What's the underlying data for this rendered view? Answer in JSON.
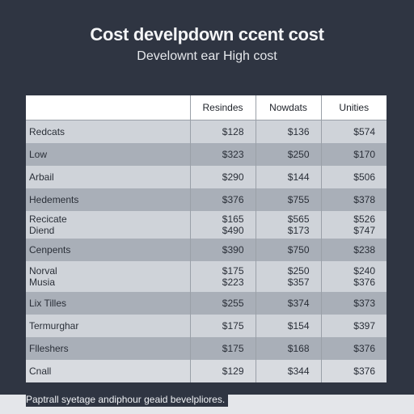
{
  "chart_data": {
    "type": "table",
    "title": "Cost develpdown ccent cost",
    "subtitle": "Develownt ear High cost",
    "columns": [
      "",
      "Resindes",
      "Nowdats",
      "Unities"
    ],
    "rows": [
      {
        "label": [
          "Redcats"
        ],
        "values": [
          [
            "$128"
          ],
          [
            "$136"
          ],
          [
            "$574"
          ]
        ]
      },
      {
        "label": [
          "Low"
        ],
        "values": [
          [
            "$323"
          ],
          [
            "$250"
          ],
          [
            "$170"
          ]
        ]
      },
      {
        "label": [
          "Arbail"
        ],
        "values": [
          [
            "$290"
          ],
          [
            "$144"
          ],
          [
            "$506"
          ]
        ]
      },
      {
        "label": [
          "Hedements"
        ],
        "values": [
          [
            "$376"
          ],
          [
            "$755"
          ],
          [
            "$378"
          ]
        ]
      },
      {
        "label": [
          "Recicate",
          "Diend"
        ],
        "values": [
          [
            "$165",
            "$490"
          ],
          [
            "$565",
            "$173"
          ],
          [
            "$526",
            "$747"
          ]
        ]
      },
      {
        "label": [
          "Cenpents"
        ],
        "values": [
          [
            "$390"
          ],
          [
            "$750"
          ],
          [
            "$238"
          ]
        ]
      },
      {
        "label": [
          "Norval",
          "Musia"
        ],
        "values": [
          [
            "$175",
            "$223"
          ],
          [
            "$250",
            "$357"
          ],
          [
            "$240",
            "$376"
          ]
        ]
      },
      {
        "label": [
          "Lix Tilles"
        ],
        "values": [
          [
            "$255"
          ],
          [
            "$374"
          ],
          [
            "$373"
          ]
        ]
      },
      {
        "label": [
          "Termurghar"
        ],
        "values": [
          [
            "$175"
          ],
          [
            "$154"
          ],
          [
            "$397"
          ]
        ]
      },
      {
        "label": [
          "Flleshers"
        ],
        "values": [
          [
            "$175"
          ],
          [
            "$168"
          ],
          [
            "$376"
          ]
        ]
      },
      {
        "label": [
          "Cnall"
        ],
        "values": [
          [
            "$129"
          ],
          [
            "$344"
          ],
          [
            "$376"
          ]
        ]
      }
    ]
  },
  "footer": "Paptrall syetage andiphour geaid bevelpliores."
}
